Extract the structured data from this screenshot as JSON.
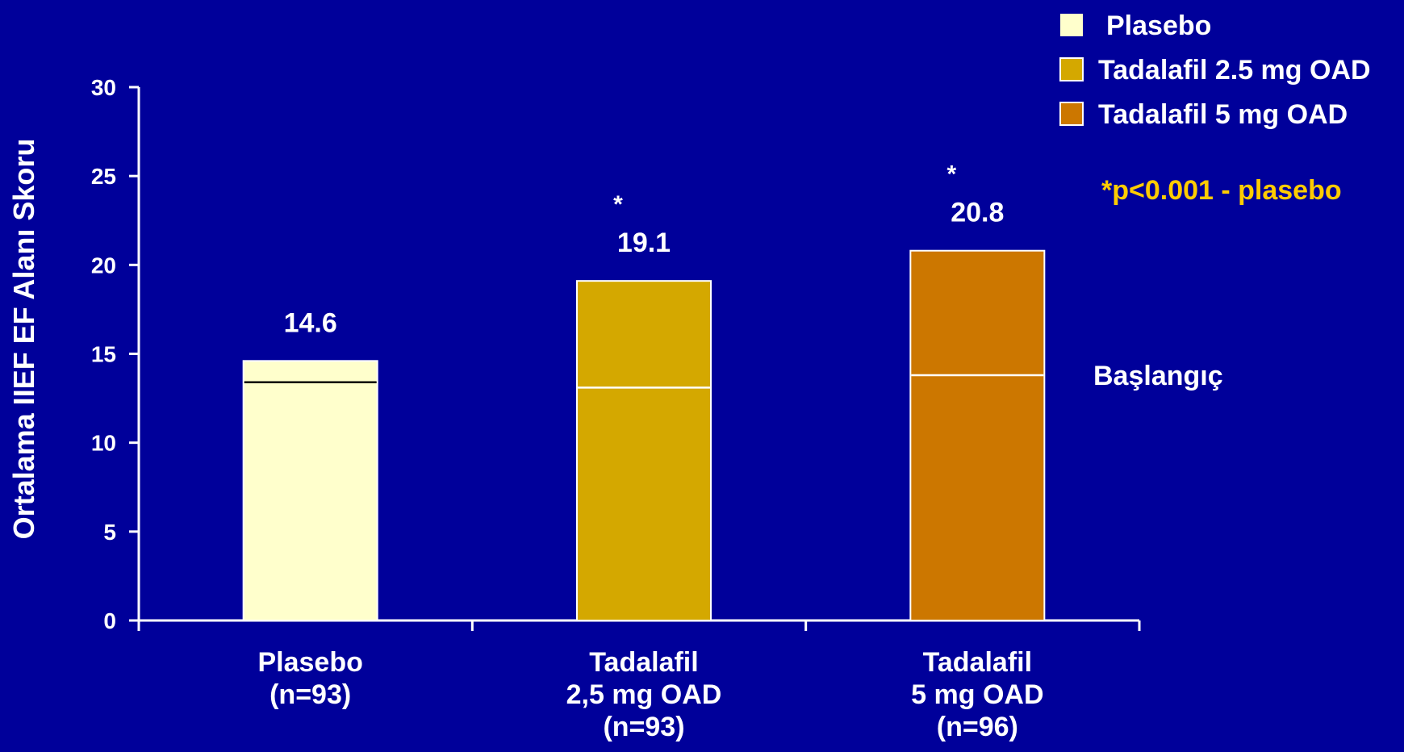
{
  "chart_data": {
    "type": "bar",
    "ylabel": "Ortalama IIEF EF Alanı Skoru",
    "ylim": [
      0,
      30
    ],
    "yticks": [
      "0",
      "5",
      "10",
      "15",
      "20",
      "25",
      "30"
    ],
    "categories": [
      [
        "Plasebo",
        "(n=93)"
      ],
      [
        "Tadalafil",
        "2,5 mg OAD",
        "(n=93)"
      ],
      [
        "Tadalafil",
        "5 mg OAD",
        "(n=96)"
      ]
    ],
    "values": [
      14.6,
      19.1,
      20.8
    ],
    "value_labels": [
      "14.6",
      "19.1",
      "20.8"
    ],
    "baseline_values": [
      13.4,
      13.1,
      13.8
    ],
    "baseline_label": "Başlangıç",
    "significance_marks": [
      "",
      "*",
      "*"
    ],
    "significance_note": "*p<0.001 - plasebo",
    "legend": {
      "position": "top-right",
      "entries": [
        {
          "label": "Plasebo",
          "color": "#ffffcc"
        },
        {
          "label": "Tadalafil 2.5 mg OAD",
          "color": "#d4a800"
        },
        {
          "label": "Tadalafil 5 mg OAD",
          "color": "#cc7700"
        }
      ]
    },
    "colors": {
      "background": "#00009a",
      "axis": "#ffffff",
      "text": "#ffffff",
      "note": "#ffcc00",
      "bars": [
        "#ffffcc",
        "#d4a800",
        "#cc7700"
      ],
      "baselines": [
        "#000000",
        "#ffffff",
        "#ffffff"
      ]
    }
  }
}
